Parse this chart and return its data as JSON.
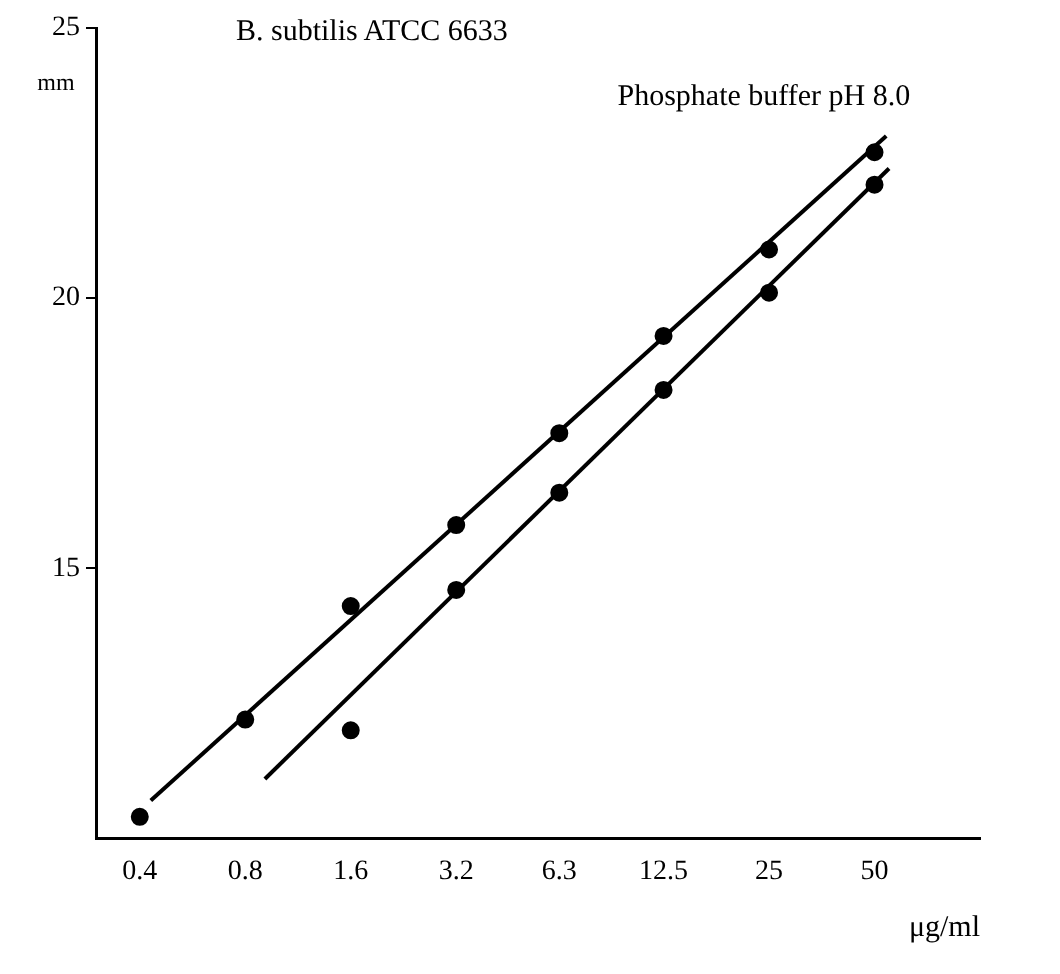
{
  "chart_data": {
    "type": "scatter",
    "title": "B. subtilis ATCC 6633",
    "xlabel": "μg/ml",
    "ylabel": "mm",
    "log": "x",
    "xlim": [
      0.3,
      100
    ],
    "xticks": [
      0.4,
      0.8,
      1.6,
      3.2,
      6.3,
      12.5,
      25,
      50
    ],
    "ylim": [
      10,
      25
    ],
    "yticks": [
      15,
      20,
      25
    ],
    "grid": false,
    "legend": false,
    "marker": "circle",
    "series": [
      {
        "color": "#000000",
        "x": [
          0.4,
          0.8,
          1.6,
          3.2,
          6.3,
          12.5,
          25,
          50
        ],
        "values": [
          10.4,
          12.2,
          14.3,
          15.8,
          17.5,
          19.3,
          20.9,
          22.7
        ]
      },
      {
        "color": "#000000",
        "x": [
          1.6,
          3.2,
          6.3,
          12.5,
          25,
          50
        ],
        "values": [
          12.0,
          14.6,
          16.4,
          18.3,
          20.1,
          22.1
        ]
      },
      {
        "type": "line",
        "name": "Phosphate buffer pH 8.0",
        "color": "#000000",
        "marker": "none",
        "x": [
          0.43,
          54
        ],
        "values": [
          10.7,
          23.0
        ]
      },
      {
        "type": "line",
        "color": "#000000",
        "marker": "none",
        "x": [
          0.91,
          55
        ],
        "values": [
          11.1,
          22.4
        ]
      }
    ]
  }
}
